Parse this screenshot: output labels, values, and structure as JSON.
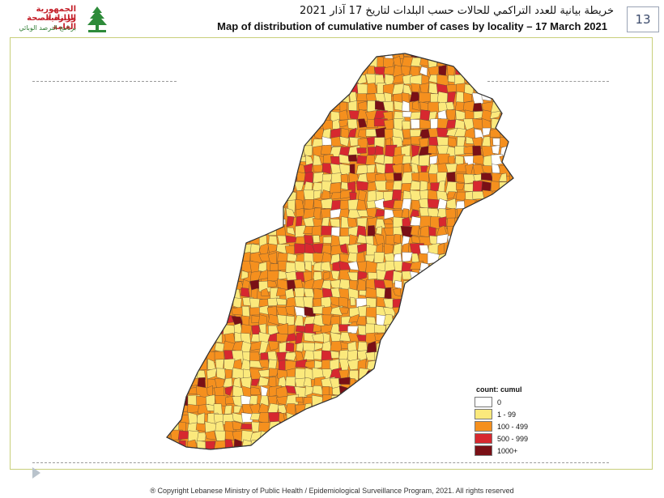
{
  "header": {
    "logo_line1": "الجمهورية اللبنانية",
    "logo_line2": "وزارة الصحة العامة",
    "logo_line3": "برنامج الترصد الوبائي",
    "title_arabic": "خريطة بيانية للعدد التراكمي للحالات حسب البلدات لتاريخ 17 آذار 2021",
    "title_english": "Map of distribution of cumulative number of cases by locality – 17 March 2021",
    "page_number": "13"
  },
  "legend": {
    "title": "count: cumul",
    "items": [
      {
        "label": "0",
        "color": "#ffffff"
      },
      {
        "label": "1 - 99",
        "color": "#fbe97c"
      },
      {
        "label": "100 - 499",
        "color": "#f5901e"
      },
      {
        "label": "500 - 999",
        "color": "#d7282f"
      },
      {
        "label": "1000+",
        "color": "#7a1016"
      }
    ]
  },
  "footer": "® Copyright Lebanese Ministry of Public Health / Epidemiological Surveillance Program, 2021. All rights reserved"
}
